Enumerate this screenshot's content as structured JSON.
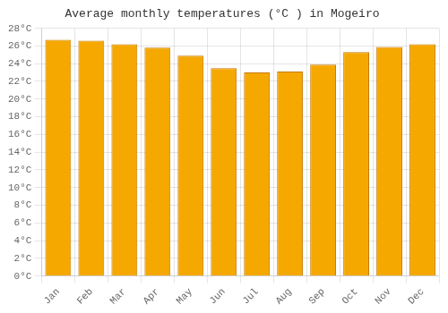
{
  "chart_data": {
    "type": "bar",
    "title": "Average monthly temperatures (°C ) in Mogeiro",
    "categories": [
      "Jan",
      "Feb",
      "Mar",
      "Apr",
      "May",
      "Jun",
      "Jul",
      "Aug",
      "Sep",
      "Oct",
      "Nov",
      "Dec"
    ],
    "values": [
      26.7,
      26.6,
      26.2,
      25.8,
      24.9,
      23.5,
      23.0,
      23.1,
      23.9,
      25.3,
      25.9,
      26.2
    ],
    "color": "#F5A800",
    "ylim": [
      0,
      28
    ],
    "yticks": [
      {
        "value": 0,
        "label": "0°C"
      },
      {
        "value": 2,
        "label": "2°C"
      },
      {
        "value": 4,
        "label": "4°C"
      },
      {
        "value": 6,
        "label": "6°C"
      },
      {
        "value": 8,
        "label": "8°C"
      },
      {
        "value": 10,
        "label": "10°C"
      },
      {
        "value": 12,
        "label": "12°C"
      },
      {
        "value": 14,
        "label": "14°C"
      },
      {
        "value": 16,
        "label": "16°C"
      },
      {
        "value": 18,
        "label": "18°C"
      },
      {
        "value": 20,
        "label": "20°C"
      },
      {
        "value": 22,
        "label": "22°C"
      },
      {
        "value": 24,
        "label": "24°C"
      },
      {
        "value": 26,
        "label": "26°C"
      },
      {
        "value": 28,
        "label": "28°C"
      }
    ],
    "grid": true
  }
}
